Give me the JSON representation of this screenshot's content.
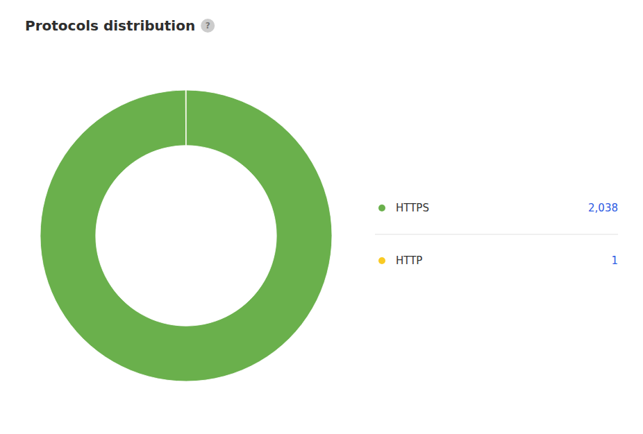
{
  "chart_data": {
    "type": "pie",
    "title": "Protocols distribution",
    "categories": [
      "HTTPS",
      "HTTP"
    ],
    "values": [
      2038,
      1
    ],
    "value_labels": [
      "2,038",
      "1"
    ],
    "colors": [
      "#6ab04c",
      "#f9ca24"
    ],
    "legend": "right",
    "annotations": [
      "?"
    ]
  }
}
